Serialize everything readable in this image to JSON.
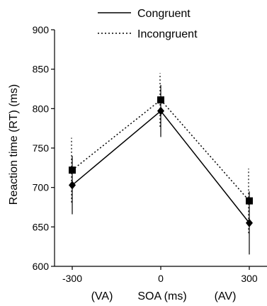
{
  "chart_data": {
    "type": "line",
    "title": "",
    "xlabel": "SOA (ms)",
    "ylabel": "Reaction time (RT) (ms)",
    "x": [
      -300,
      0,
      300
    ],
    "x_tick_labels": [
      "-300",
      "0",
      "300"
    ],
    "x_sublabels": {
      "left": "(VA)",
      "right": "(AV)"
    },
    "y_ticks": [
      "600",
      "650",
      "700",
      "750",
      "800",
      "850",
      "900"
    ],
    "xlim": [
      -360,
      360
    ],
    "ylim": [
      600,
      900
    ],
    "grid": false,
    "legend_position": "top",
    "series": [
      {
        "name": "Congruent",
        "line_style": "solid",
        "marker": "diamond",
        "color": "#000000",
        "values": [
          703,
          797,
          655
        ],
        "error": [
          37,
          33,
          40
        ]
      },
      {
        "name": "Incongruent",
        "line_style": "dotted",
        "marker": "square",
        "color": "#000000",
        "values": [
          722,
          811,
          683
        ],
        "error": [
          41,
          34,
          41
        ]
      }
    ]
  }
}
